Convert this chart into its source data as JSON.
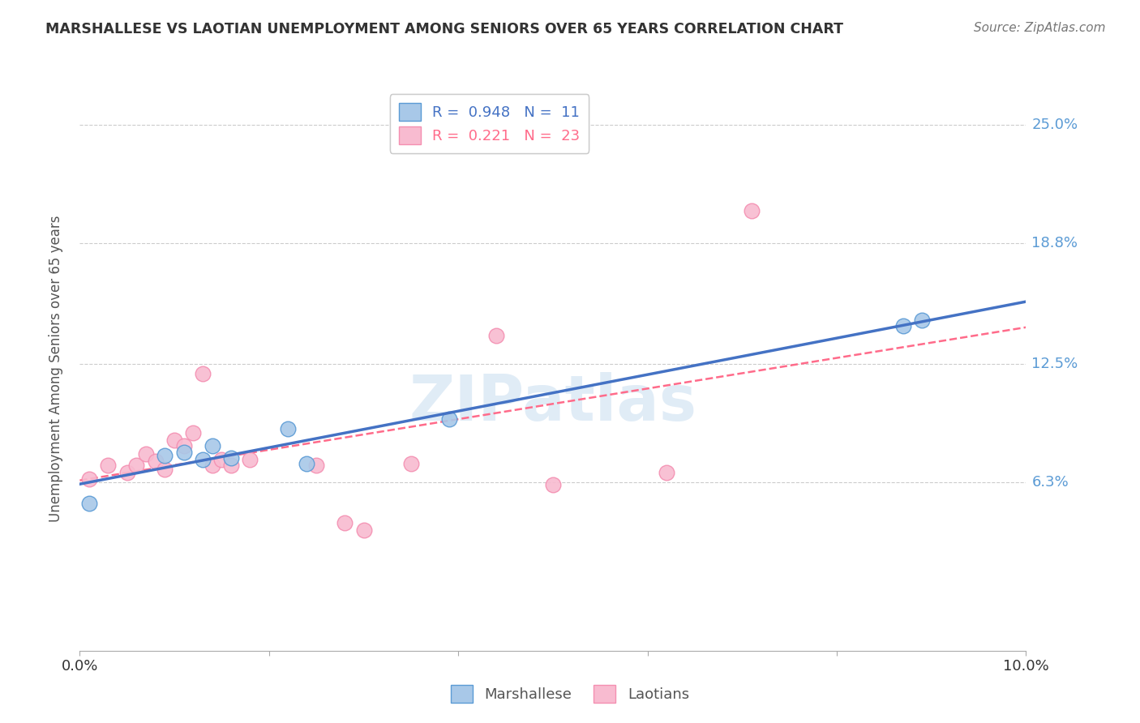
{
  "title": "MARSHALLESE VS LAOTIAN UNEMPLOYMENT AMONG SENIORS OVER 65 YEARS CORRELATION CHART",
  "source": "Source: ZipAtlas.com",
  "ylabel": "Unemployment Among Seniors over 65 years",
  "xlim": [
    0.0,
    0.1
  ],
  "ylim": [
    -0.025,
    0.27
  ],
  "yticks": [
    0.063,
    0.125,
    0.188,
    0.25
  ],
  "ytick_labels": [
    "6.3%",
    "12.5%",
    "18.8%",
    "25.0%"
  ],
  "xticks": [
    0.0,
    0.02,
    0.04,
    0.06,
    0.08,
    0.1
  ],
  "xtick_labels": [
    "0.0%",
    "",
    "",
    "",
    "",
    "10.0%"
  ],
  "marshallese_color": "#A8C8E8",
  "laotian_color": "#F8BBD0",
  "marshallese_edge_color": "#5B9BD5",
  "laotian_edge_color": "#F48FB1",
  "marshallese_line_color": "#4472C4",
  "laotian_line_color": "#FF6B8A",
  "right_label_color": "#5B9BD5",
  "marshallese_R": 0.948,
  "marshallese_N": 11,
  "laotian_R": 0.221,
  "laotian_N": 23,
  "marshallese_x": [
    0.001,
    0.009,
    0.011,
    0.013,
    0.014,
    0.016,
    0.022,
    0.024,
    0.039,
    0.087,
    0.089
  ],
  "marshallese_y": [
    0.052,
    0.077,
    0.079,
    0.075,
    0.082,
    0.076,
    0.091,
    0.073,
    0.096,
    0.145,
    0.148
  ],
  "laotian_x": [
    0.001,
    0.003,
    0.005,
    0.006,
    0.007,
    0.008,
    0.009,
    0.01,
    0.011,
    0.012,
    0.013,
    0.014,
    0.015,
    0.016,
    0.018,
    0.025,
    0.028,
    0.03,
    0.035,
    0.044,
    0.05,
    0.062,
    0.071
  ],
  "laotian_y": [
    0.065,
    0.072,
    0.068,
    0.072,
    0.078,
    0.074,
    0.07,
    0.085,
    0.082,
    0.089,
    0.12,
    0.072,
    0.075,
    0.072,
    0.075,
    0.072,
    0.042,
    0.038,
    0.073,
    0.14,
    0.062,
    0.068,
    0.205
  ],
  "background_color": "#FFFFFF",
  "grid_color": "#CCCCCC"
}
